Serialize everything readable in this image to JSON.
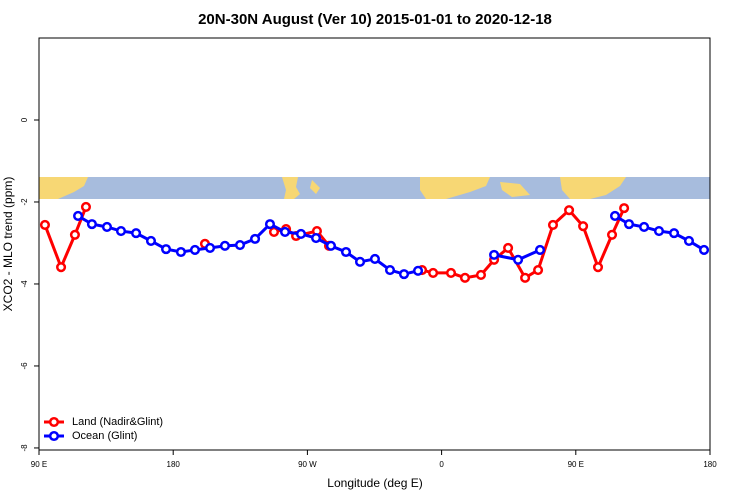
{
  "chart_data": {
    "type": "line",
    "title": "20N-30N August (Ver 10)   2015-01-01 to 2020-12-18",
    "x_label": "Longitude (deg E)",
    "y_label": "XCO2 - MLO trend (ppm)",
    "xlim": [
      90,
      540
    ],
    "xticks": [
      {
        "value": 90,
        "label": "90 E"
      },
      180,
      {
        "value": 270,
        "label": "90 W"
      },
      {
        "value": 360,
        "label": "0"
      },
      {
        "value": 450,
        "label": "90 E"
      },
      {
        "value": 540,
        "label": "180"
      }
    ],
    "ylim": [
      -8.05,
      2
    ],
    "yticks": [
      0,
      -2,
      -4,
      -6,
      -8
    ],
    "legend": "bottom-left",
    "series": [
      {
        "name": "Land (Nadir&Glint)",
        "color": "#ff0000",
        "x": [
          94,
          104.8,
          114.1,
          121.5,
          null,
          201.3,
          null,
          247.6,
          255.7,
          262.4,
          276.4,
          284.5,
          null,
          346.9,
          354.3,
          366.3,
          375.7,
          386.4,
          395.2,
          404.6,
          416,
          424.7,
          434.7,
          445.5,
          454.9,
          464.9,
          474.3,
          482.4
        ],
        "values": [
          -2.56,
          -3.59,
          -2.8,
          -2.12,
          null,
          -3.02,
          null,
          -2.73,
          -2.66,
          -2.83,
          -2.71,
          -3.07,
          null,
          -3.66,
          -3.73,
          -3.73,
          -3.85,
          -3.78,
          -3.41,
          -3.12,
          -3.85,
          -3.66,
          -2.56,
          -2.2,
          -2.59,
          -3.59,
          -2.8,
          -2.15
        ]
      },
      {
        "name": "Ocean (Glint)",
        "color": "#0000ff",
        "x": [
          116.2,
          125.5,
          135.6,
          145,
          155.1,
          165.1,
          175.2,
          185.2,
          194.6,
          204.7,
          214.7,
          224.8,
          234.9,
          244.9,
          255,
          265.7,
          275.8,
          285.8,
          295.9,
          305.3,
          315.3,
          325.4,
          334.8,
          344.2,
          null,
          395.2,
          411.3,
          426,
          null,
          476.3,
          485.7,
          495.8,
          505.8,
          515.9,
          525.9,
          536
        ],
        "values": [
          -2.34,
          -2.54,
          -2.61,
          -2.71,
          -2.76,
          -2.95,
          -3.15,
          -3.22,
          -3.17,
          -3.12,
          -3.07,
          -3.05,
          -2.9,
          -2.54,
          -2.73,
          -2.78,
          -2.88,
          -3.07,
          -3.22,
          -3.46,
          -3.39,
          -3.66,
          -3.76,
          -3.68,
          null,
          -3.29,
          -3.41,
          -3.17,
          null,
          -2.34,
          -2.54,
          -2.61,
          -2.71,
          -2.76,
          -2.95,
          -3.17
        ]
      }
    ]
  }
}
